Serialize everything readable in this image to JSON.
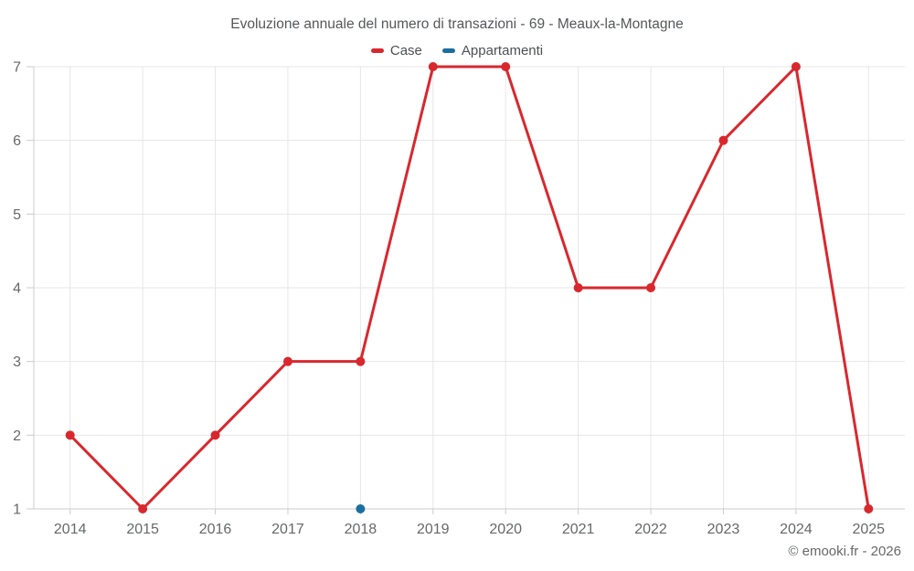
{
  "title": "Evoluzione annuale del numero di transazioni - 69 - Meaux-la-Montagne",
  "copyright": "© emooki.fr - 2026",
  "legend": {
    "items": [
      {
        "id": "case",
        "label": "Case",
        "color": "#d8282e"
      },
      {
        "id": "appartamenti",
        "label": "Appartamenti",
        "color": "#1a6fa0"
      }
    ]
  },
  "colors": {
    "grid": "#e6e6e6",
    "axis": "#cccccc",
    "tick_label": "#666869",
    "case_red": "#d8282e",
    "appartamenti_blue": "#1a6fa0",
    "background": "#ffffff"
  },
  "chart_data": {
    "type": "line",
    "title": "Evoluzione annuale del numero di transazioni - 69 - Meaux-la-Montagne",
    "xlabel": "",
    "ylabel": "",
    "categories": [
      "2014",
      "2015",
      "2016",
      "2017",
      "2018",
      "2019",
      "2020",
      "2021",
      "2022",
      "2023",
      "2024",
      "2025"
    ],
    "series": [
      {
        "name": "Case",
        "color": "#d8282e",
        "values": [
          2,
          1,
          2,
          3,
          3,
          7,
          7,
          4,
          4,
          6,
          7,
          1
        ]
      },
      {
        "name": "Appartamenti",
        "color": "#1a6fa0",
        "values": [
          null,
          null,
          null,
          null,
          1,
          null,
          null,
          null,
          null,
          null,
          null,
          null
        ]
      }
    ],
    "ylim": [
      1,
      7
    ],
    "yticks": [
      1,
      2,
      3,
      4,
      5,
      6,
      7
    ],
    "grid": true,
    "legend_position": "top"
  }
}
